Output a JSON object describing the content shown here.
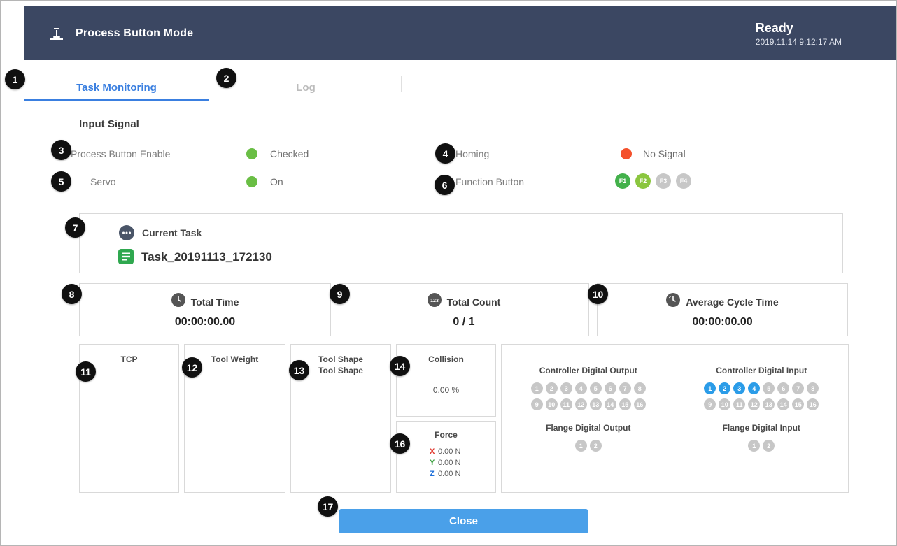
{
  "header": {
    "title": "Process Button Mode",
    "status": "Ready",
    "timestamp": "2019.11.14 9:12:17 AM"
  },
  "tabs": {
    "task_monitoring": "Task Monitoring",
    "log": "Log"
  },
  "input_signal": {
    "title": "Input Signal",
    "rows": [
      {
        "label": "Process Button Enable",
        "state": "Checked"
      },
      {
        "label": "Homing",
        "state": "No Signal"
      },
      {
        "label": "Servo",
        "state": "On"
      },
      {
        "label": "Function Button"
      }
    ]
  },
  "function_buttons": [
    {
      "label": "F1",
      "color": "#43b14b",
      "on": true
    },
    {
      "label": "F2",
      "color": "#8bc63f",
      "on": true
    },
    {
      "label": "F3",
      "color": "#c7c7c7",
      "on": false
    },
    {
      "label": "F4",
      "color": "#c7c7c7",
      "on": false
    }
  ],
  "current_task": {
    "title": "Current Task",
    "task_name": "Task_20191113_172130"
  },
  "stats": [
    {
      "icon": "clock-icon",
      "label": "Total Time",
      "value": "00:00:00.00"
    },
    {
      "icon": "count-123-icon",
      "label": "Total Count",
      "value": "0 / 1"
    },
    {
      "icon": "cycle-clock-icon",
      "label": "Average Cycle Time",
      "value": "00:00:00.00"
    }
  ],
  "panels": {
    "tcp": {
      "title": "TCP"
    },
    "tool_weight": {
      "title": "Tool Weight"
    },
    "tool_shape": {
      "title": "Tool Shape",
      "value": "Tool Shape"
    },
    "collision": {
      "title": "Collision",
      "value": "0.00 %"
    },
    "force": {
      "title": "Force",
      "axes": [
        {
          "axis": "X",
          "value": "0.00 N",
          "color": "#e0392f"
        },
        {
          "axis": "Y",
          "value": "0.00 N",
          "color": "#3fa142"
        },
        {
          "axis": "Z",
          "value": "0.00 N",
          "color": "#1e6fd9"
        }
      ]
    }
  },
  "digital_io": {
    "on_color": "#2b9ce8",
    "off_color": "#c7c7c7",
    "groups": [
      {
        "title": "Controller Digital Output",
        "count": 16,
        "on": []
      },
      {
        "title": "Controller Digital Input",
        "count": 16,
        "on": [
          1,
          2,
          3,
          4
        ]
      },
      {
        "title": "Flange Digital Output",
        "count": 2,
        "on": []
      },
      {
        "title": "Flange Digital Input",
        "count": 2,
        "on": []
      }
    ]
  },
  "close_button": "Close",
  "callouts": [
    "1",
    "2",
    "3",
    "4",
    "5",
    "6",
    "7",
    "8",
    "9",
    "10",
    "11",
    "12",
    "13",
    "14",
    "16",
    "17"
  ],
  "colors": {
    "header_bg": "#3b4762",
    "tab_active": "#3a7fe0",
    "signal_on_green": "#6abe45",
    "signal_off_red": "#f4512c",
    "close_button_bg": "#4aa0e9"
  },
  "icons": {
    "header": "process-button-icon",
    "current_task": "ellipsis-icon",
    "task_file": "task-file-icon",
    "total_time": "clock-icon",
    "total_count": "count-123-icon",
    "average_cycle_time": "cycle-clock-icon"
  }
}
